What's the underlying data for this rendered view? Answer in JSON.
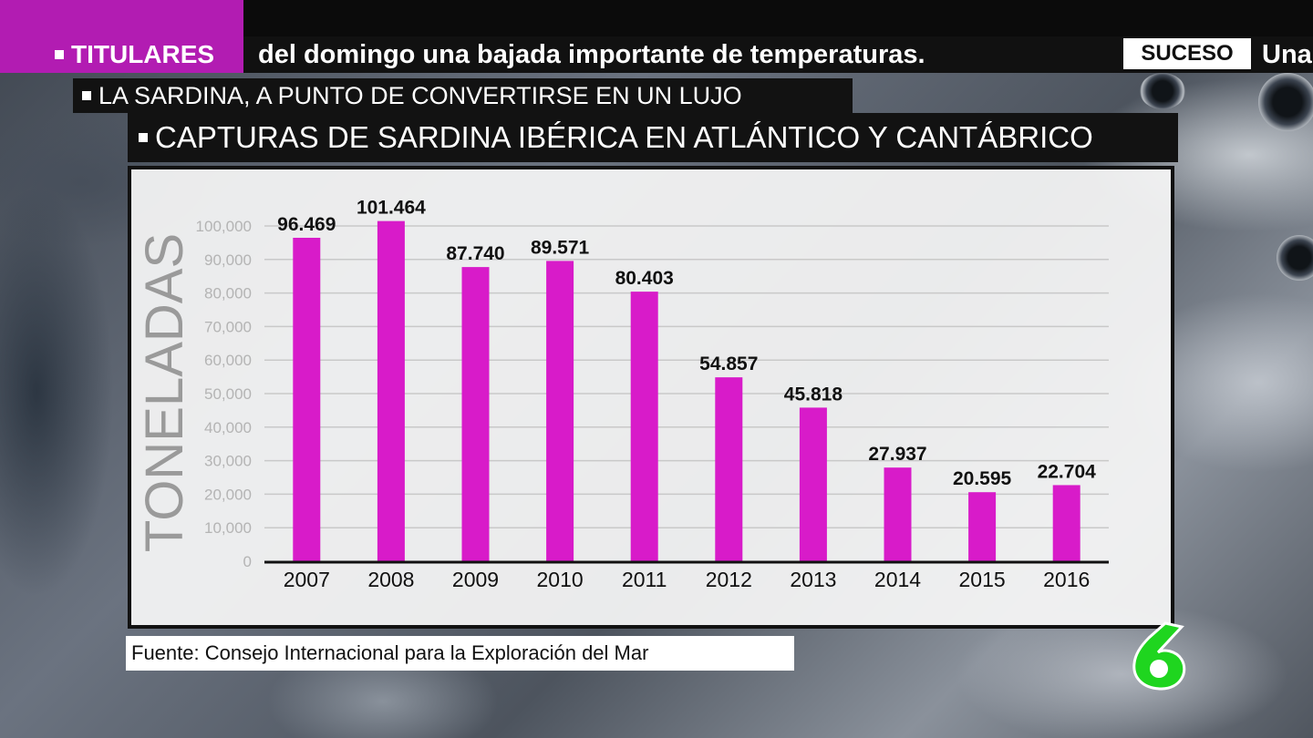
{
  "ticker": {
    "tag": "TITULARES",
    "text": "del domingo una bajada importante de temperaturas.",
    "tag2": "SUCESO",
    "text2": "Una",
    "accent": "#b21cb2"
  },
  "headlines": {
    "line1": "LA SARDINA, A PUNTO DE CONVERTIRSE EN UN LUJO",
    "line2": "CAPTURAS DE SARDINA IBÉRICA EN ATLÁNTICO Y CANTÁBRICO"
  },
  "source": "Fuente: Consejo Internacional para la Exploración del Mar",
  "logo": {
    "icon": "channel-6-logo",
    "color": "#1fd51f"
  },
  "chart_data": {
    "type": "bar",
    "title": "",
    "xlabel": "",
    "ylabel": "TONELADAS",
    "ylim": [
      0,
      100000
    ],
    "grid": true,
    "bar_color": "#d81bc9",
    "yticks": [
      0,
      10000,
      20000,
      30000,
      40000,
      50000,
      60000,
      70000,
      80000,
      90000,
      100000
    ],
    "ytick_labels": [
      "0",
      "10,000",
      "20,000",
      "30,000",
      "40,000",
      "50,000",
      "60,000",
      "70,000",
      "80,000",
      "90,000",
      "100,000"
    ],
    "categories": [
      "2007",
      "2008",
      "2009",
      "2010",
      "2011",
      "2012",
      "2013",
      "2014",
      "2015",
      "2016"
    ],
    "values": [
      96469,
      101464,
      87740,
      89571,
      80403,
      54857,
      45818,
      27937,
      20595,
      22704
    ],
    "value_labels": [
      "96.469",
      "101.464",
      "87.740",
      "89.571",
      "80.403",
      "54.857",
      "45.818",
      "27.937",
      "20.595",
      "22.704"
    ]
  }
}
